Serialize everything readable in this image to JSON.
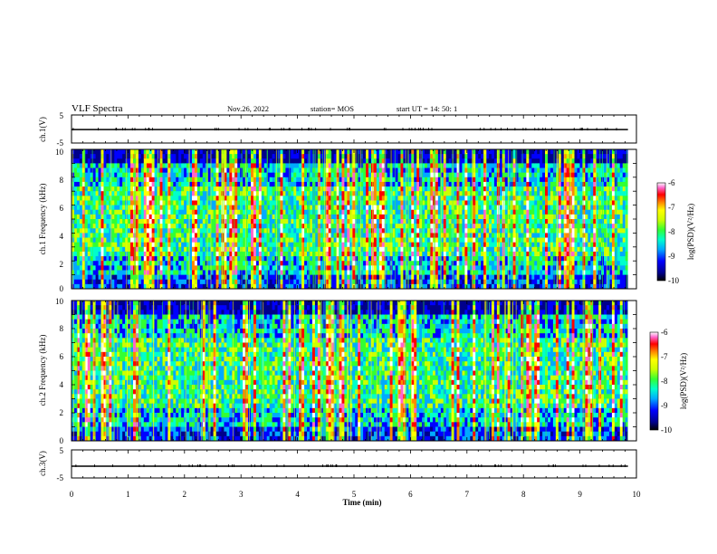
{
  "header": {
    "title": "VLF Spectra",
    "date": "Nov.26, 2022",
    "station": "station= MOS",
    "start": "start  UT =   14: 50: 1"
  },
  "chart_data": [
    {
      "type": "line",
      "panel": "voltage-1",
      "ylabel": "ch.1(V)",
      "ylim": [
        -5,
        5
      ],
      "yticks": [
        "5",
        "-5"
      ],
      "x_range_min": [
        0,
        9.85
      ],
      "level": -0.2
    },
    {
      "type": "heatmap",
      "panel": "spectrogram-1",
      "ylabel": "ch.1 Frequency (kHz)",
      "ylim": [
        0,
        10
      ],
      "yticks": [
        "0",
        "2",
        "4",
        "6",
        "8",
        "10"
      ],
      "x_range_min": [
        0,
        9.85
      ],
      "colorbar": {
        "label": "log(PSD)(V²/Hz)",
        "range": [
          -10,
          -6
        ],
        "ticks": [
          "-6",
          "-7",
          "-8",
          "-9",
          "-10"
        ]
      }
    },
    {
      "type": "heatmap",
      "panel": "spectrogram-2",
      "ylabel": "ch.2 Frequency (kHz)",
      "ylim": [
        0,
        10
      ],
      "yticks": [
        "0",
        "2",
        "4",
        "6",
        "8",
        "10"
      ],
      "x_range_min": [
        0,
        9.85
      ],
      "colorbar": {
        "label": "log(PSD)(V²/Hz)",
        "range": [
          -10,
          -6
        ],
        "ticks": [
          "-6",
          "-7",
          "-8",
          "-9",
          "-10"
        ]
      }
    },
    {
      "type": "line",
      "panel": "voltage-2",
      "ylabel": "ch.3(V)",
      "ylim": [
        -5,
        5
      ],
      "yticks": [
        "5",
        "-5"
      ],
      "x_range_min": [
        0,
        9.85
      ],
      "level": -0.8
    }
  ],
  "x_axis": {
    "label": "Time  (min)",
    "range": [
      0,
      10
    ],
    "ticks": [
      "0",
      "1",
      "2",
      "3",
      "4",
      "5",
      "6",
      "7",
      "8",
      "9",
      "10"
    ]
  },
  "colors": {
    "background_dark": "#000000",
    "palette": [
      "#000000",
      "#00008b",
      "#0000ff",
      "#00aaff",
      "#00ffcc",
      "#33ff33",
      "#ccff00",
      "#ffff00",
      "#ff8800",
      "#ff0000",
      "#ff66cc",
      "#ffffff"
    ]
  }
}
